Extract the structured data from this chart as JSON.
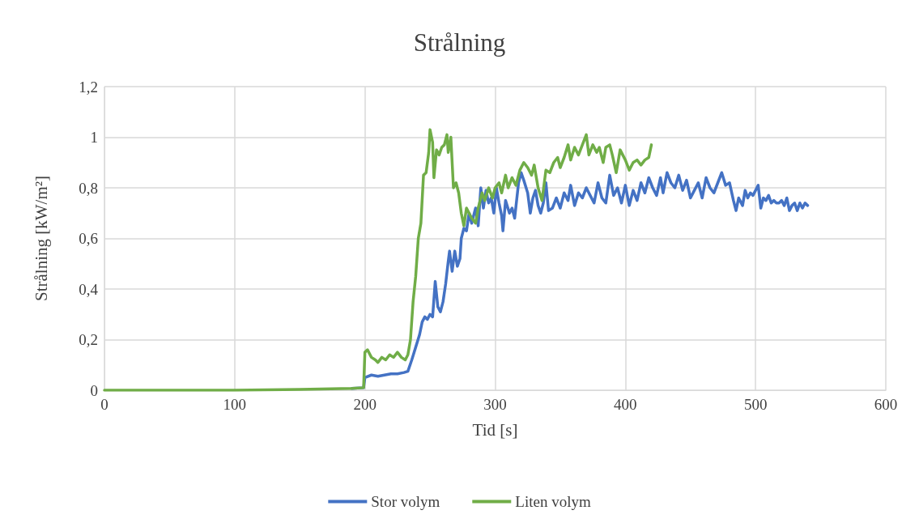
{
  "chart_data": {
    "type": "line",
    "title": "Strålning",
    "xlabel": "Tid [s]",
    "ylabel": "Strålning [kW/m²]",
    "xlim": [
      0,
      600
    ],
    "xticks": [
      0,
      100,
      200,
      300,
      400,
      500,
      600
    ],
    "ylim": [
      0,
      1.2
    ],
    "yticks": [
      0,
      {
        "value": 0.2,
        "label": "0,2"
      },
      {
        "value": 0.4,
        "label": "0,4"
      },
      {
        "value": 0.6,
        "label": "0,6"
      },
      {
        "value": 0.8,
        "label": "0,8"
      },
      1,
      {
        "value": 1.2,
        "label": "1,2"
      }
    ],
    "grid": true,
    "legend": "bottom",
    "marker": "none",
    "line_style": "solid",
    "series": [
      {
        "name": "Stor volym",
        "color": "#4472c4",
        "x": [
          190,
          199,
          200,
          205,
          210,
          215,
          220,
          225,
          230,
          233,
          236,
          239,
          242,
          244,
          246,
          248,
          250,
          252,
          254,
          256,
          258,
          260,
          262,
          264,
          265,
          267,
          269,
          271,
          273,
          274,
          276,
          278,
          280,
          282,
          285,
          287,
          289,
          291,
          293,
          295,
          297,
          299,
          301,
          303,
          305,
          306,
          308,
          311,
          313,
          315,
          318,
          320,
          322,
          325,
          327,
          329,
          331,
          333,
          335,
          337,
          339,
          341,
          344,
          347,
          350,
          353,
          356,
          358,
          361,
          364,
          367,
          370,
          373,
          376,
          379,
          382,
          385,
          388,
          391,
          394,
          397,
          400,
          403,
          406,
          409,
          412,
          415,
          418,
          421,
          424,
          427,
          429,
          432,
          435,
          438,
          441,
          444,
          447,
          450,
          453,
          456,
          459,
          462,
          465,
          468,
          471,
          474,
          477,
          480,
          483,
          485,
          487,
          490,
          492,
          494,
          496,
          498,
          500,
          502,
          504,
          506,
          508,
          510,
          512,
          514,
          516,
          518,
          520,
          522,
          524,
          526,
          528,
          530,
          532,
          534,
          536,
          538,
          540
        ],
        "values": [
          0.007,
          0.01,
          0.05,
          0.06,
          0.055,
          0.06,
          0.065,
          0.065,
          0.07,
          0.075,
          0.12,
          0.17,
          0.22,
          0.27,
          0.29,
          0.28,
          0.3,
          0.29,
          0.43,
          0.33,
          0.31,
          0.35,
          0.42,
          0.51,
          0.55,
          0.47,
          0.55,
          0.49,
          0.52,
          0.6,
          0.64,
          0.63,
          0.7,
          0.66,
          0.72,
          0.65,
          0.8,
          0.72,
          0.79,
          0.74,
          0.76,
          0.7,
          0.8,
          0.74,
          0.69,
          0.63,
          0.75,
          0.7,
          0.72,
          0.68,
          0.82,
          0.86,
          0.83,
          0.78,
          0.7,
          0.76,
          0.79,
          0.73,
          0.7,
          0.74,
          0.82,
          0.71,
          0.72,
          0.76,
          0.72,
          0.78,
          0.75,
          0.81,
          0.73,
          0.78,
          0.76,
          0.8,
          0.77,
          0.74,
          0.82,
          0.76,
          0.74,
          0.85,
          0.77,
          0.8,
          0.74,
          0.81,
          0.73,
          0.79,
          0.75,
          0.82,
          0.78,
          0.84,
          0.8,
          0.77,
          0.84,
          0.78,
          0.86,
          0.82,
          0.8,
          0.85,
          0.79,
          0.83,
          0.76,
          0.79,
          0.82,
          0.76,
          0.84,
          0.8,
          0.78,
          0.82,
          0.86,
          0.81,
          0.82,
          0.75,
          0.71,
          0.76,
          0.73,
          0.79,
          0.76,
          0.78,
          0.77,
          0.79,
          0.81,
          0.72,
          0.76,
          0.75,
          0.77,
          0.74,
          0.75,
          0.74,
          0.74,
          0.75,
          0.73,
          0.76,
          0.71,
          0.73,
          0.74,
          0.71,
          0.74,
          0.72,
          0.74,
          0.73
        ]
      },
      {
        "name": "Liten volym",
        "color": "#70ad47",
        "x": [
          0,
          100,
          150,
          190,
          199,
          200,
          202,
          205,
          208,
          210,
          213,
          216,
          219,
          222,
          225,
          228,
          231,
          233,
          235,
          237,
          239,
          241,
          243,
          245,
          247,
          249,
          250,
          252,
          253,
          255,
          257,
          259,
          261,
          263,
          264,
          266,
          268,
          270,
          272,
          274,
          276,
          278,
          280,
          282,
          285,
          287,
          290,
          292,
          295,
          298,
          300,
          303,
          305,
          308,
          310,
          313,
          316,
          319,
          322,
          325,
          328,
          330,
          333,
          336,
          339,
          342,
          345,
          348,
          350,
          353,
          356,
          358,
          361,
          364,
          367,
          370,
          372,
          375,
          378,
          380,
          383,
          385,
          388,
          390,
          393,
          396,
          400,
          403,
          406,
          409,
          412,
          415,
          418,
          420
        ],
        "values": [
          0,
          0,
          0.003,
          0.007,
          0.01,
          0.15,
          0.16,
          0.13,
          0.12,
          0.11,
          0.13,
          0.12,
          0.14,
          0.13,
          0.15,
          0.13,
          0.12,
          0.14,
          0.2,
          0.35,
          0.45,
          0.6,
          0.66,
          0.85,
          0.86,
          0.94,
          1.03,
          0.98,
          0.84,
          0.95,
          0.93,
          0.96,
          0.97,
          1.01,
          0.94,
          1.0,
          0.8,
          0.82,
          0.78,
          0.7,
          0.65,
          0.72,
          0.7,
          0.68,
          0.66,
          0.72,
          0.78,
          0.75,
          0.8,
          0.76,
          0.8,
          0.82,
          0.78,
          0.85,
          0.8,
          0.84,
          0.81,
          0.87,
          0.9,
          0.88,
          0.85,
          0.89,
          0.8,
          0.75,
          0.87,
          0.86,
          0.9,
          0.92,
          0.88,
          0.92,
          0.97,
          0.91,
          0.96,
          0.93,
          0.97,
          1.01,
          0.93,
          0.97,
          0.94,
          0.96,
          0.9,
          0.96,
          0.97,
          0.93,
          0.86,
          0.95,
          0.91,
          0.87,
          0.9,
          0.91,
          0.89,
          0.91,
          0.92,
          0.97
        ]
      }
    ]
  }
}
